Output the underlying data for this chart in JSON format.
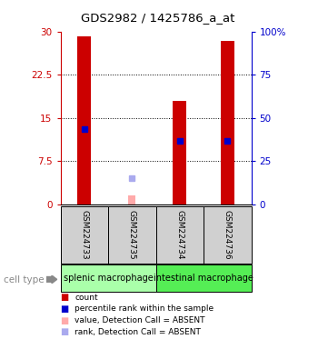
{
  "title": "GDS2982 / 1425786_a_at",
  "samples": [
    "GSM224733",
    "GSM224735",
    "GSM224734",
    "GSM224736"
  ],
  "groups": [
    {
      "name": "splenic macrophage",
      "color": "#88ee88"
    },
    {
      "name": "intestinal macrophage",
      "color": "#44dd44"
    }
  ],
  "red_bars": [
    29.2,
    null,
    18.0,
    28.3
  ],
  "blue_squares": [
    13.0,
    null,
    11.0,
    11.0
  ],
  "pink_bars": [
    null,
    1.5,
    null,
    null
  ],
  "lavender_squares": [
    null,
    4.5,
    null,
    null
  ],
  "ylim_left": [
    0,
    30
  ],
  "ylim_right": [
    0,
    100
  ],
  "yticks_left": [
    0,
    7.5,
    15,
    22.5,
    30
  ],
  "yticks_right": [
    0,
    25,
    50,
    75,
    100
  ],
  "ytick_labels_left": [
    "0",
    "7.5",
    "15",
    "22.5",
    "30"
  ],
  "ytick_labels_right": [
    "0",
    "25",
    "50",
    "75",
    "100%"
  ],
  "left_axis_color": "#cc0000",
  "right_axis_color": "#0000cc",
  "bar_width": 0.28,
  "sample_bg_color": "#d0d0d0",
  "group_label": "cell type",
  "group_colors": [
    "#aaffaa",
    "#55ee55"
  ],
  "legend_items": [
    {
      "color": "#cc0000",
      "label": "count"
    },
    {
      "color": "#0000cc",
      "label": "percentile rank within the sample"
    },
    {
      "color": "#ffaaaa",
      "label": "value, Detection Call = ABSENT"
    },
    {
      "color": "#aaaaee",
      "label": "rank, Detection Call = ABSENT"
    }
  ]
}
